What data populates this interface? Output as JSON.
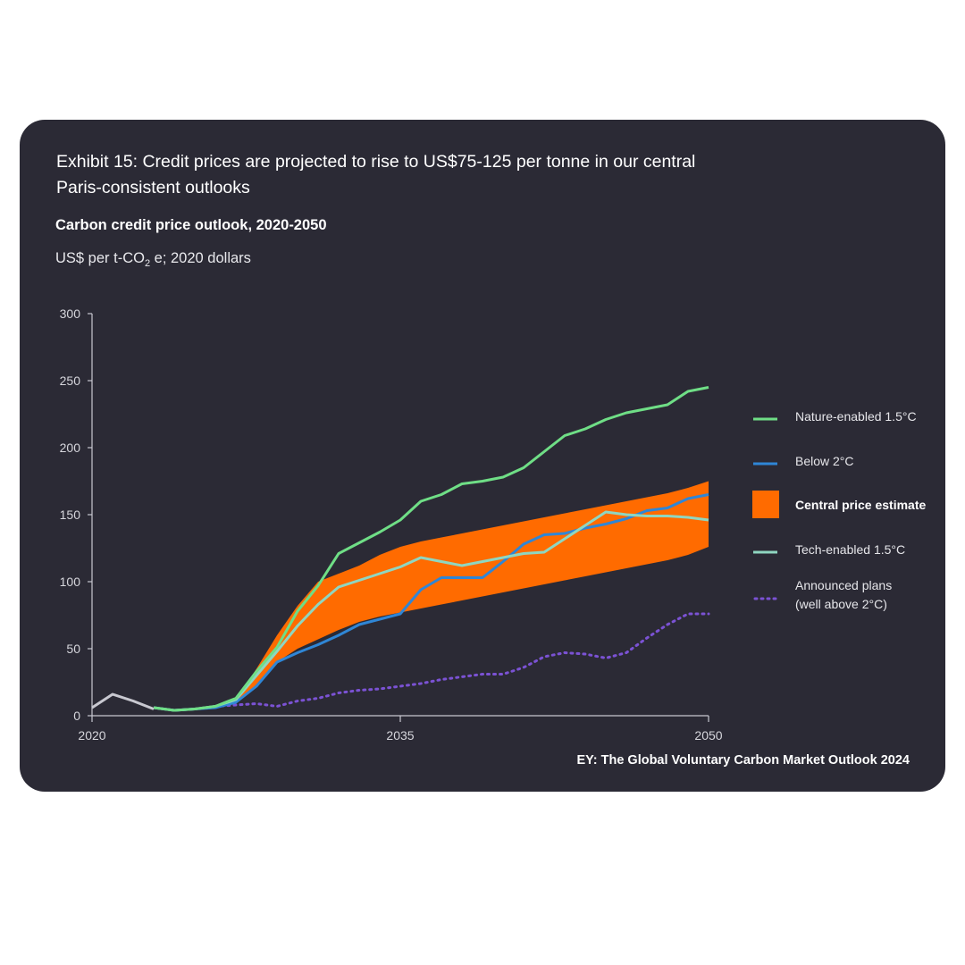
{
  "header": {
    "exhibit_title_line1": "Exhibit 15: Credit prices are projected to rise to US$75-125 per tonne in our central",
    "exhibit_title_line2": "Paris-consistent outlooks",
    "chart_title": "Carbon credit price outlook, 2020-2050",
    "units_prefix": "US$ per t-CO",
    "units_sub": "2",
    "units_suffix": " e; 2020 dollars"
  },
  "source": "EY: The Global Voluntary Carbon Market Outlook 2024",
  "colors": {
    "background": "#2b2a35",
    "nature": "#6fde86",
    "below2": "#2f86d6",
    "central": "#ff6b00",
    "tech": "#8fd6c0",
    "announced": "#7b52d4",
    "history": "#c8c8d0"
  },
  "chart_data": {
    "type": "line",
    "title": "Carbon credit price outlook, 2020-2050",
    "ylabel": "US$ per t-CO2e; 2020 dollars",
    "xlabel": "",
    "xlim": [
      2020,
      2050
    ],
    "ylim": [
      0,
      300
    ],
    "x_ticks": [
      2020,
      2035,
      2050
    ],
    "y_ticks": [
      0,
      50,
      100,
      150,
      200,
      250,
      300
    ],
    "grid": false,
    "legend_position": "right",
    "history": {
      "x": [
        2020,
        2021,
        2022,
        2023
      ],
      "values": [
        6,
        16,
        11,
        5
      ]
    },
    "band": {
      "name": "Central price estimate",
      "x": [
        2027,
        2028,
        2029,
        2030,
        2031,
        2032,
        2033,
        2034,
        2035,
        2036,
        2037,
        2038,
        2039,
        2040,
        2041,
        2042,
        2043,
        2044,
        2045,
        2046,
        2047,
        2048,
        2049,
        2050
      ],
      "upper": [
        12,
        35,
        60,
        82,
        100,
        106,
        112,
        120,
        126,
        130,
        133,
        136,
        139,
        142,
        145,
        148,
        151,
        154,
        157,
        160,
        163,
        166,
        170,
        175
      ],
      "lower": [
        10,
        22,
        40,
        50,
        57,
        64,
        70,
        74,
        77,
        80,
        83,
        86,
        89,
        92,
        95,
        98,
        101,
        104,
        107,
        110,
        113,
        116,
        120,
        126
      ]
    },
    "series": [
      {
        "name": "Nature-enabled 1.5°C",
        "x": [
          2023,
          2024,
          2025,
          2026,
          2027,
          2028,
          2029,
          2030,
          2031,
          2032,
          2033,
          2034,
          2035,
          2036,
          2037,
          2038,
          2039,
          2040,
          2041,
          2042,
          2043,
          2044,
          2045,
          2046,
          2047,
          2048,
          2049,
          2050
        ],
        "values": [
          6,
          4,
          5,
          7,
          13,
          33,
          51,
          78,
          97,
          121,
          129,
          137,
          146,
          160,
          165,
          173,
          175,
          178,
          185,
          197,
          209,
          214,
          221,
          226,
          229,
          232,
          242,
          245
        ]
      },
      {
        "name": "Below 2°C",
        "x": [
          2023,
          2024,
          2025,
          2026,
          2027,
          2028,
          2029,
          2030,
          2031,
          2032,
          2033,
          2034,
          2035,
          2036,
          2037,
          2038,
          2039,
          2040,
          2041,
          2042,
          2043,
          2044,
          2045,
          2046,
          2047,
          2048,
          2049,
          2050
        ],
        "values": [
          6,
          4,
          5,
          6,
          10,
          22,
          40,
          47,
          53,
          60,
          68,
          72,
          76,
          94,
          103,
          103,
          103,
          115,
          128,
          135,
          136,
          140,
          143,
          147,
          153,
          155,
          162,
          165
        ]
      },
      {
        "name": "Tech-enabled 1.5°C",
        "x": [
          2023,
          2024,
          2025,
          2026,
          2027,
          2028,
          2029,
          2030,
          2031,
          2032,
          2033,
          2034,
          2035,
          2036,
          2037,
          2038,
          2039,
          2040,
          2041,
          2042,
          2043,
          2044,
          2045,
          2046,
          2047,
          2048,
          2049,
          2050
        ],
        "values": [
          6,
          4,
          5,
          7,
          12,
          30,
          48,
          67,
          83,
          96,
          101,
          106,
          111,
          118,
          115,
          112,
          115,
          118,
          121,
          122,
          132,
          142,
          152,
          150,
          149,
          149,
          148,
          146
        ]
      },
      {
        "name": "Announced plans\n(well above 2°C)",
        "x": [
          2026,
          2027,
          2028,
          2029,
          2030,
          2031,
          2032,
          2033,
          2034,
          2035,
          2036,
          2037,
          2038,
          2039,
          2040,
          2041,
          2042,
          2043,
          2044,
          2045,
          2046,
          2047,
          2048,
          2049,
          2050
        ],
        "values": [
          7,
          8,
          9,
          7,
          11,
          13,
          17,
          19,
          20,
          22,
          24,
          27,
          29,
          31,
          31,
          36,
          44,
          47,
          46,
          43,
          47,
          58,
          68,
          76,
          76
        ]
      }
    ],
    "legend": [
      {
        "label": "Nature-enabled 1.5°C",
        "key": "nature"
      },
      {
        "label": "Below 2°C",
        "key": "below2"
      },
      {
        "label": "Central price estimate",
        "key": "central"
      },
      {
        "label": "Tech-enabled 1.5°C",
        "key": "tech"
      },
      {
        "label": "Announced plans",
        "label2": "(well above 2°C)",
        "key": "announced"
      }
    ]
  }
}
